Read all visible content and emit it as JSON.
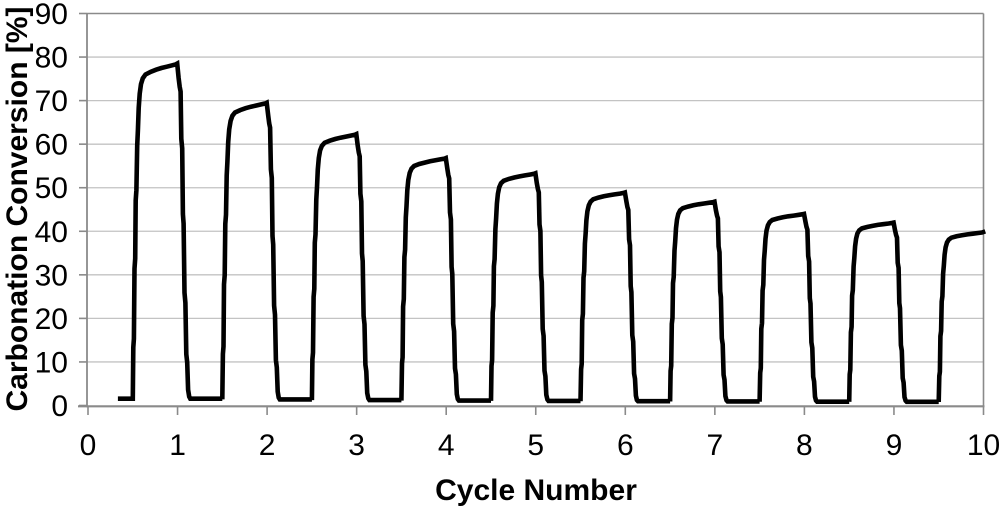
{
  "chart_data": {
    "type": "line",
    "title": "",
    "xlabel": "Cycle Number",
    "ylabel": "Carbonation Conversion [%]",
    "xlim": [
      0,
      10
    ],
    "ylim": [
      0,
      90
    ],
    "x_ticks": [
      0,
      1,
      2,
      3,
      4,
      5,
      6,
      7,
      8,
      9,
      10
    ],
    "y_ticks": [
      0,
      10,
      20,
      30,
      40,
      50,
      60,
      70,
      80,
      90
    ],
    "grid": "horizontal",
    "legend": "none",
    "plot_border": "top-right-gray",
    "colors": {
      "line": "#000000",
      "gridline": "#c3c3c3",
      "axis": "#8a8a8a",
      "text": "#000000",
      "background": "#ffffff"
    },
    "line_width": 4.6,
    "series": [
      {
        "name": "carbonation-conversion",
        "description": "Cyclic carbonation: each cycle shows a steep stepped rise, a slowly rising plateau, then a steep stepped drop back to ~0 during regeneration; plateau (peak) conversion decays with cycle number.",
        "peaks": {
          "categories": [
            1,
            2,
            3,
            4,
            5,
            6,
            7,
            8,
            9,
            10
          ],
          "values": [
            78.5,
            69.5,
            62.3,
            56.8,
            53.3,
            48.9,
            46.8,
            44.0,
            42.0,
            39.8
          ]
        },
        "start_x": 0.36,
        "cycle_profile": [
          [
            -0.5,
            0.02
          ],
          [
            -0.494,
            0.17
          ],
          [
            -0.487,
            0.195
          ],
          [
            -0.481,
            0.4
          ],
          [
            -0.473,
            0.43
          ],
          [
            -0.467,
            0.6
          ],
          [
            -0.459,
            0.63
          ],
          [
            -0.451,
            0.76
          ],
          [
            -0.443,
            0.805
          ],
          [
            -0.434,
            0.87
          ],
          [
            -0.423,
            0.912
          ],
          [
            -0.408,
            0.94
          ],
          [
            -0.388,
            0.957
          ],
          [
            -0.358,
            0.968
          ],
          [
            -0.3,
            0.976
          ],
          [
            -0.24,
            0.982
          ],
          [
            -0.18,
            0.987
          ],
          [
            -0.12,
            0.991
          ],
          [
            -0.06,
            0.995
          ],
          [
            -0.018,
            0.998
          ],
          [
            -0.004,
            1.0
          ],
          [
            0.012,
            0.958
          ],
          [
            0.024,
            0.932
          ],
          [
            0.034,
            0.918
          ],
          [
            0.042,
            0.78
          ],
          [
            0.052,
            0.752
          ],
          [
            0.06,
            0.56
          ],
          [
            0.068,
            0.532
          ],
          [
            0.078,
            0.33
          ],
          [
            0.088,
            0.3
          ],
          [
            0.098,
            0.15
          ],
          [
            0.108,
            0.126
          ],
          [
            0.118,
            0.046
          ],
          [
            0.13,
            0.026
          ],
          [
            0.142,
            0.02
          ],
          [
            0.5,
            0.02
          ]
        ]
      }
    ]
  }
}
